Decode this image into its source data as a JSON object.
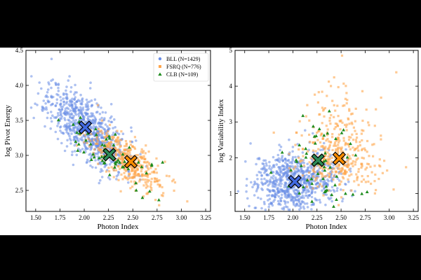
{
  "colors": {
    "BLL": "#6a8ee6",
    "FSRQ": "#ffa64d",
    "CLB": "#1e8c1e",
    "BLL_mean": "#4169e1",
    "FSRQ_mean": "#ff8c00",
    "CLB_mean": "#2e8b57"
  },
  "chart_data": [
    {
      "type": "scatter",
      "title": "",
      "xlabel": "Photon Index",
      "ylabel": "log Pivot Energy",
      "xlim": [
        1.4,
        3.3
      ],
      "ylim": [
        2.2,
        4.5
      ],
      "xticks": [
        "1.50",
        "1.75",
        "2.00",
        "2.25",
        "2.50",
        "2.75",
        "3.00",
        "3.25"
      ],
      "yticks": [
        "2.5",
        "3.0",
        "3.5",
        "4.0",
        "4.5"
      ],
      "grid": false,
      "legend_position": "top-right",
      "series": [
        {
          "name": "BLL (N=1429)",
          "marker": "circle",
          "color_key": "BLL",
          "count": 1429,
          "center": [
            2.02,
            3.4
          ],
          "spread": [
            0.2,
            0.22
          ],
          "slope": -0.95
        },
        {
          "name": "FSRQ (N=776)",
          "marker": "square",
          "color_key": "FSRQ",
          "count": 776,
          "center": [
            2.46,
            2.9
          ],
          "spread": [
            0.2,
            0.15
          ],
          "slope": -0.8
        },
        {
          "name": "CLB (N=109)",
          "marker": "triangle",
          "color_key": "CLB",
          "count": 109,
          "center": [
            2.26,
            3.01
          ],
          "spread": [
            0.2,
            0.18
          ],
          "slope": -0.9
        }
      ],
      "means": [
        {
          "series": "BLL",
          "x": 2.01,
          "y": 3.4
        },
        {
          "series": "CLB",
          "x": 2.26,
          "y": 3.01
        },
        {
          "series": "FSRQ",
          "x": 2.48,
          "y": 2.91
        }
      ]
    },
    {
      "type": "scatter",
      "title": "",
      "xlabel": "Photon Index",
      "ylabel": "log Variability Index",
      "xlim": [
        1.4,
        3.3
      ],
      "ylim": [
        0.5,
        5.0
      ],
      "xticks": [
        "1.50",
        "1.75",
        "2.00",
        "2.25",
        "2.50",
        "2.75",
        "3.00",
        "3.25"
      ],
      "yticks": [
        "1",
        "2",
        "3",
        "4",
        "5"
      ],
      "grid": false,
      "series": [
        {
          "name": "BLL (N=1429)",
          "marker": "circle",
          "color_key": "BLL",
          "count": 1429,
          "center": [
            2.02,
            1.33
          ],
          "spread": [
            0.22,
            0.42
          ],
          "slope": 0
        },
        {
          "name": "FSRQ (N=776)",
          "marker": "square",
          "color_key": "FSRQ",
          "count": 776,
          "center": [
            2.46,
            1.98
          ],
          "spread": [
            0.2,
            0.9
          ],
          "slope": 0
        },
        {
          "name": "CLB (N=109)",
          "marker": "triangle",
          "color_key": "CLB",
          "count": 109,
          "center": [
            2.26,
            1.93
          ],
          "spread": [
            0.2,
            0.8
          ],
          "slope": 0
        }
      ],
      "means": [
        {
          "series": "BLL",
          "x": 2.02,
          "y": 1.33
        },
        {
          "series": "CLB",
          "x": 2.26,
          "y": 1.93
        },
        {
          "series": "FSRQ",
          "x": 2.48,
          "y": 1.98
        }
      ]
    }
  ]
}
